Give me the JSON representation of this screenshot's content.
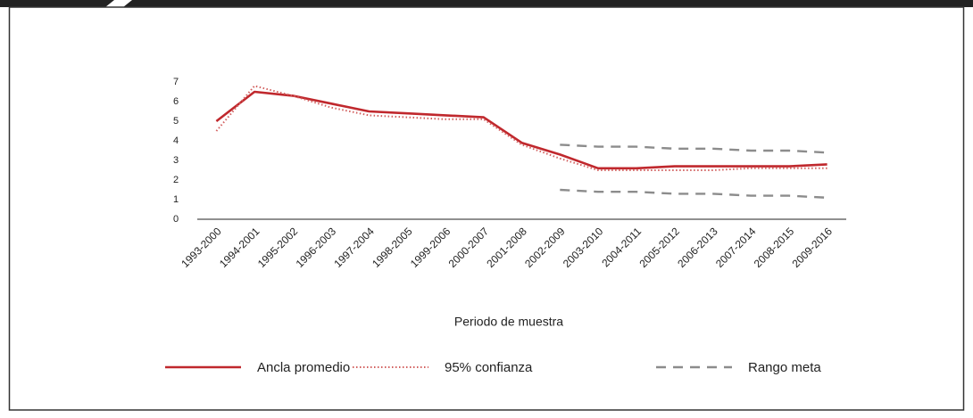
{
  "chart_data": {
    "type": "line",
    "x_label": "Periodo de muestra",
    "categories": [
      "1993-2000",
      "1994-2001",
      "1995-2002",
      "1996-2003",
      "1997-2004",
      "1998-2005",
      "1999-2006",
      "2000-2007",
      "2001-2008",
      "2002-2009",
      "2003-2010",
      "2004-2011",
      "2005-2012",
      "2006-2013",
      "2007-2014",
      "2008-2015",
      "2009-2016"
    ],
    "series": [
      {
        "name": "Ancla promedio",
        "color": "#c0282d",
        "style": "solid",
        "values": [
          5.0,
          6.5,
          6.3,
          5.9,
          5.5,
          5.4,
          5.3,
          5.2,
          3.9,
          3.3,
          2.6,
          2.6,
          2.7,
          2.7,
          2.7,
          2.7,
          2.8
        ]
      },
      {
        "name": "95% confianza",
        "color": "#d2605f",
        "style": "dotted",
        "values": [
          4.5,
          6.8,
          6.3,
          5.7,
          5.3,
          5.2,
          5.1,
          5.1,
          3.8,
          3.1,
          2.5,
          2.5,
          2.5,
          2.5,
          2.6,
          2.6,
          2.6
        ]
      },
      {
        "name": "Rango meta",
        "color": "#8c8c8c",
        "style": "dashed",
        "upper": [
          null,
          null,
          null,
          null,
          null,
          null,
          null,
          null,
          null,
          3.8,
          3.7,
          3.7,
          3.6,
          3.6,
          3.5,
          3.5,
          3.4
        ],
        "lower": [
          null,
          null,
          null,
          null,
          null,
          null,
          null,
          null,
          null,
          1.5,
          1.4,
          1.4,
          1.3,
          1.3,
          1.2,
          1.2,
          1.1
        ]
      }
    ],
    "ylim": [
      0,
      7
    ],
    "yticks": [
      0,
      1,
      2,
      3,
      4,
      5,
      6,
      7
    ],
    "grid": false
  }
}
